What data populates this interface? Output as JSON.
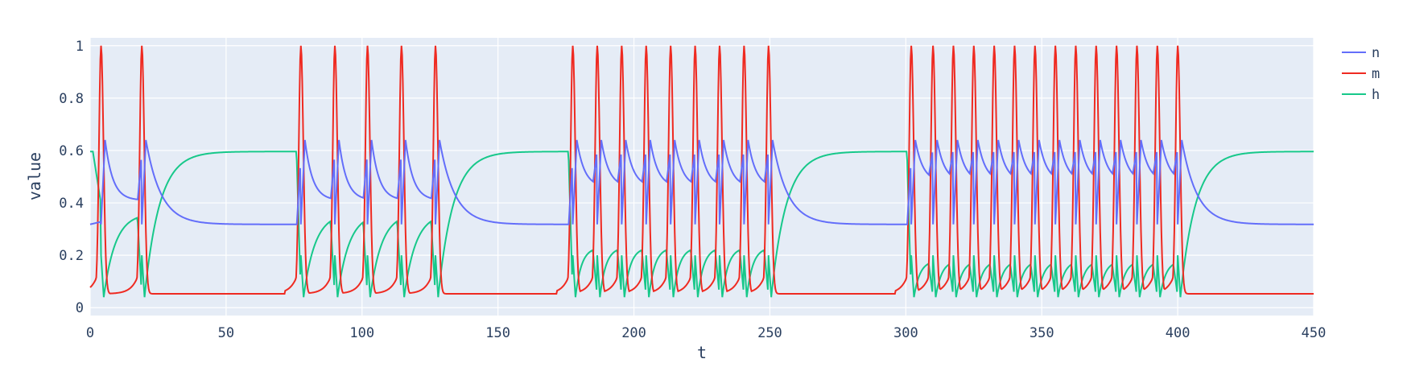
{
  "chart_data": {
    "type": "line",
    "title": "",
    "xlabel": "t",
    "ylabel": "value",
    "xlim": [
      0,
      450
    ],
    "ylim": [
      -0.03,
      1.03
    ],
    "x_ticks": [
      0,
      50,
      100,
      150,
      200,
      250,
      300,
      350,
      400,
      450
    ],
    "y_ticks": [
      0,
      0.2,
      0.4,
      0.6,
      0.8,
      1
    ],
    "y_tick_labels": [
      "0",
      "0.2",
      "0.4",
      "0.6",
      "0.8",
      "1"
    ],
    "grid": true,
    "legend_position": "top-right",
    "series": [
      {
        "name": "n",
        "color": "#636efa"
      },
      {
        "name": "m",
        "color": "#ef2a21"
      },
      {
        "name": "h",
        "color": "#17c88a"
      }
    ],
    "bursts": [
      {
        "spikes": [
          4,
          19
        ]
      },
      {
        "spikes": [
          77.5,
          90,
          102,
          114.5,
          127
        ]
      },
      {
        "spikes": [
          177.5,
          186.5,
          195.5,
          204.5,
          213.5,
          222.5,
          231.5,
          240.5,
          249.5
        ]
      },
      {
        "spikes": [
          302,
          310,
          317.5,
          325,
          332.5,
          340,
          347.5,
          355,
          362.5,
          370,
          377.5,
          385,
          392.5,
          400
        ]
      }
    ],
    "rest_levels": {
      "n": 0.318,
      "m": 0.053,
      "h": 0.596
    },
    "spike_peaks": {
      "m": 1.0,
      "n": 0.64,
      "h_min": 0.04
    }
  }
}
